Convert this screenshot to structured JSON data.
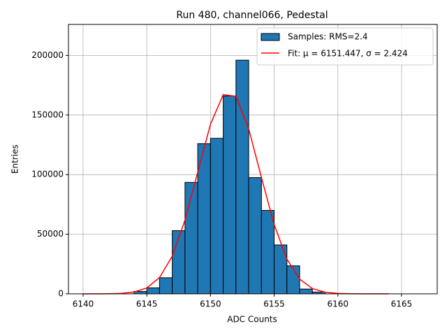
{
  "chart_data": {
    "type": "histogram",
    "title": "Run 480, channel066, Pedestal",
    "xlabel": "ADC Counts",
    "ylabel": "Entries",
    "name": "Samples: RMS=2.4",
    "color": "#1f77b4",
    "bins": [
      6144,
      6145,
      6146,
      6147,
      6148,
      6149,
      6150,
      6151,
      6152,
      6153,
      6154,
      6155,
      6156,
      6157,
      6158,
      6159
    ],
    "values": [
      2000,
      5000,
      13500,
      53000,
      93500,
      126000,
      130500,
      166000,
      196000,
      97500,
      70000,
      41000,
      23500,
      4000,
      1500
    ],
    "fit": {
      "type": "line",
      "name": "Fit: μ = 6151.447, σ = 2.424",
      "color": "#ff0000",
      "x": [
        6140,
        6141,
        6142,
        6143,
        6144,
        6145,
        6146,
        6147,
        6148,
        6149,
        6150,
        6151,
        6152,
        6153,
        6154,
        6155,
        6156,
        6157,
        6158,
        6159,
        6160,
        6161,
        6162,
        6163,
        6164
      ],
      "values": [
        2,
        16,
        86,
        392,
        1517,
        4945,
        13614,
        31590,
        61860,
        102130,
        142250,
        167130,
        165630,
        138460,
        97630,
        58080,
        29120,
        12330,
        4400,
        1326,
        337,
        72,
        13,
        2,
        0
      ]
    },
    "xlim": [
      6138.85,
      6167.8
    ],
    "ylim": [
      0,
      226000
    ],
    "xticks": [
      6140,
      6145,
      6150,
      6155,
      6160,
      6165
    ],
    "yticks": [
      0,
      50000,
      100000,
      150000,
      200000
    ],
    "grid": true,
    "legend": "upper right"
  }
}
